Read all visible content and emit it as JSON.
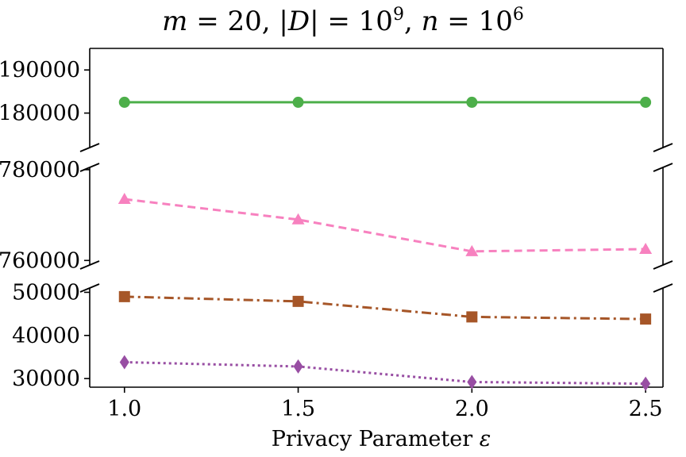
{
  "chart_data": {
    "type": "line",
    "title": "m = 20, |D| = 10^9, n = 10^6",
    "title_parts": {
      "lhs1": "m",
      "rhs1": " = 20, |",
      "lhs2": "D",
      "rhs2": "| = 10",
      "exp1": "9",
      "sep": ", ",
      "lhs3": "n",
      "rhs3": " = 10",
      "exp2": "6"
    },
    "xlabel": "Privacy Parameter ε",
    "xlabel_parts": {
      "text": "Privacy Parameter ",
      "symbol": "ε"
    },
    "ylabel": "",
    "x": [
      1.0,
      1.5,
      2.0,
      2.5
    ],
    "xticks": [
      "1.0",
      "1.5",
      "2.0",
      "2.5"
    ],
    "xlim": [
      0.9,
      2.55
    ],
    "broken_y_axis": true,
    "panels": [
      {
        "name": "top",
        "ylim": [
          172000,
          195000
        ],
        "yticks": [
          190000,
          180000
        ],
        "ytick_labels": [
          "190000",
          "180000"
        ]
      },
      {
        "name": "middle",
        "ylim": [
          759000,
          780500
        ],
        "yticks": [
          780000,
          760000
        ],
        "ytick_labels": [
          "780000",
          "760000"
        ]
      },
      {
        "name": "bottom",
        "ylim": [
          28000,
          51000
        ],
        "yticks": [
          50000,
          40000,
          30000
        ],
        "ytick_labels": [
          "50000",
          "40000",
          "30000"
        ]
      }
    ],
    "series": [
      {
        "name": "green-circle-solid",
        "panel": "top",
        "values": [
          182500,
          182500,
          182500,
          182500
        ],
        "color": "#4daf4a",
        "marker": "circle",
        "dash": ""
      },
      {
        "name": "pink-triangle-dashed",
        "panel": "middle",
        "values": [
          773500,
          769000,
          762000,
          762500
        ],
        "color": "#f781bf",
        "marker": "triangle",
        "dash": "10,6"
      },
      {
        "name": "brown-square-dashdot",
        "panel": "bottom",
        "values": [
          49000,
          47900,
          44300,
          43800
        ],
        "color": "#a65628",
        "marker": "square",
        "dash": "12,5,3,5"
      },
      {
        "name": "purple-diamond-dotted",
        "panel": "bottom",
        "values": [
          33800,
          32800,
          29200,
          28800
        ],
        "color": "#984ea3",
        "marker": "diamond",
        "dash": "3,4"
      }
    ]
  }
}
